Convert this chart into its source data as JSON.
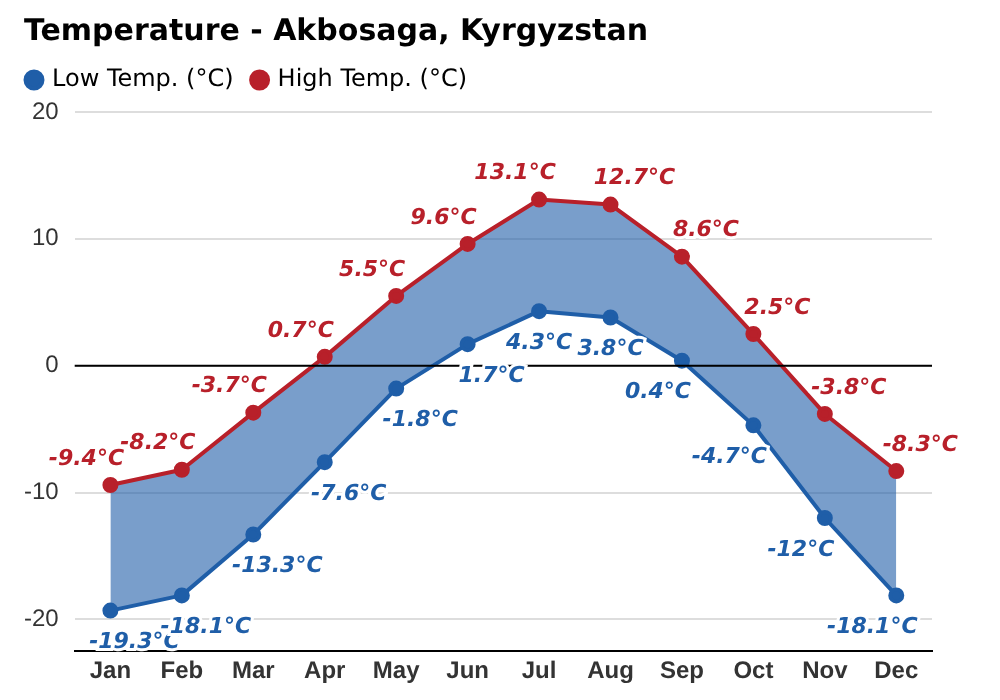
{
  "chart_data": {
    "type": "line",
    "title": "Temperature - Akbosaga, Kyrgyzstan",
    "categories": [
      "Jan",
      "Feb",
      "Mar",
      "Apr",
      "May",
      "Jun",
      "Jul",
      "Aug",
      "Sep",
      "Oct",
      "Nov",
      "Dec"
    ],
    "series": [
      {
        "name": "Low Temp. (°C)",
        "color": "#1f5ea8",
        "values": [
          -19.3,
          -18.1,
          -13.3,
          -7.6,
          -1.8,
          1.7,
          4.3,
          3.8,
          0.4,
          -4.7,
          -12,
          -18.1
        ],
        "value_labels": [
          "-19.3°C",
          "-18.1°C",
          "-13.3°C",
          "-7.6°C",
          "-1.8°C",
          "1.7°C",
          "4.3°C",
          "3.8°C",
          "0.4°C",
          "-4.7°C",
          "-12°C",
          "-18.1°C"
        ]
      },
      {
        "name": "High Temp. (°C)",
        "color": "#b8202a",
        "values": [
          -9.4,
          -8.2,
          -3.7,
          0.7,
          5.5,
          9.6,
          13.1,
          12.7,
          8.6,
          2.5,
          -3.8,
          -8.3
        ],
        "value_labels": [
          "-9.4°C",
          "-8.2°C",
          "-3.7°C",
          "0.7°C",
          "5.5°C",
          "9.6°C",
          "13.1°C",
          "12.7°C",
          "8.6°C",
          "2.5°C",
          "-3.8°C",
          "-8.3°C"
        ]
      }
    ],
    "ylim": [
      -22.5,
      20
    ],
    "yticks": [
      -20,
      -10,
      0,
      10,
      20
    ],
    "grid": "y",
    "legend": "top left",
    "marker": "circle",
    "line_style": "solid",
    "ref_lines": [
      {
        "axis": "y",
        "value": 0,
        "color": "#000000"
      }
    ]
  }
}
